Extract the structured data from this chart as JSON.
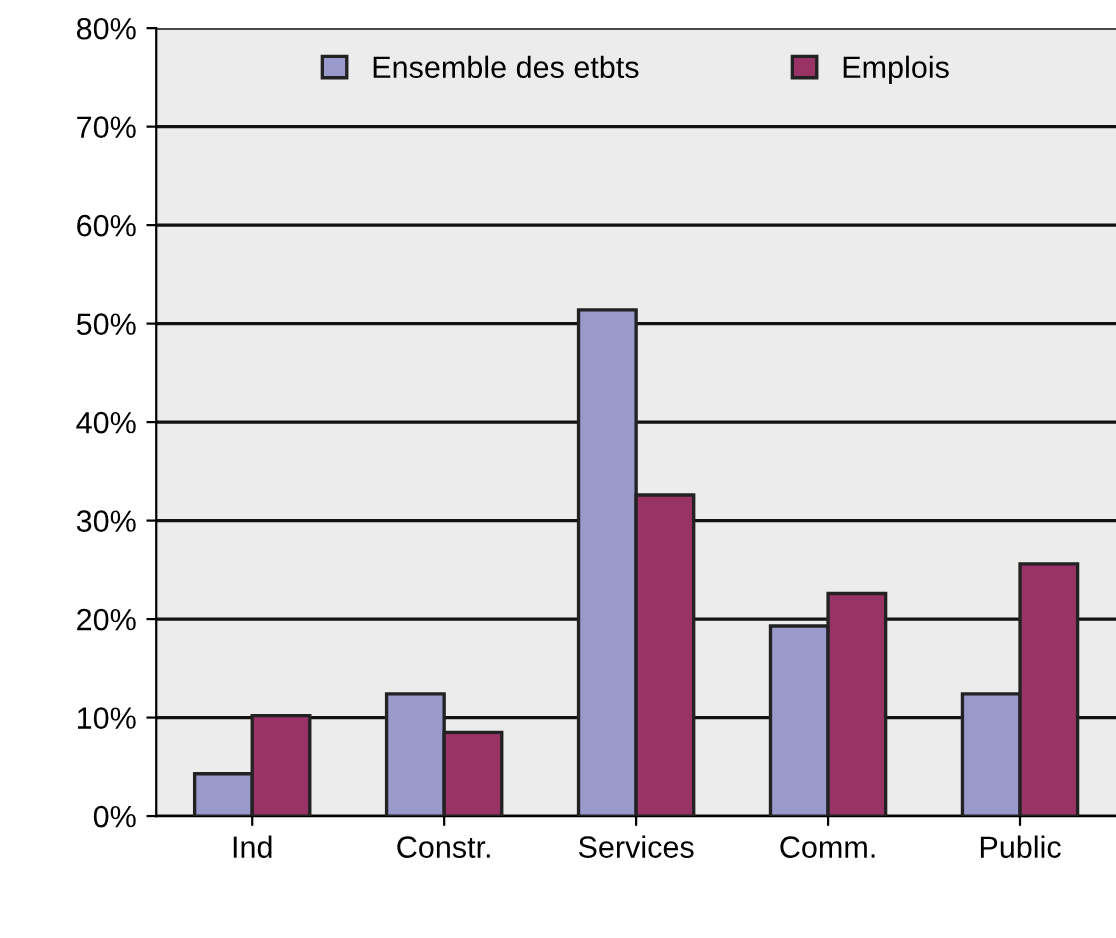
{
  "chart_data": {
    "type": "bar",
    "categories": [
      "Ind",
      "Constr.",
      "Services",
      "Comm.",
      "Public"
    ],
    "series": [
      {
        "name": "Ensemble des etbts",
        "color": "#9999cc",
        "values": [
          4.3,
          12.4,
          51.4,
          19.3,
          12.4
        ]
      },
      {
        "name": "Emplois",
        "color": "#993366",
        "values": [
          10.2,
          8.5,
          32.6,
          22.6,
          25.6
        ]
      }
    ],
    "ylim": [
      0,
      80
    ],
    "yticks": [
      {
        "value": 0,
        "label": "0%"
      },
      {
        "value": 10,
        "label": "10%"
      },
      {
        "value": 20,
        "label": "20%"
      },
      {
        "value": 30,
        "label": "30%"
      },
      {
        "value": 40,
        "label": "40%"
      },
      {
        "value": 50,
        "label": "50%"
      },
      {
        "value": 60,
        "label": "60%"
      },
      {
        "value": 70,
        "label": "70%"
      },
      {
        "value": 80,
        "label": "80%"
      }
    ],
    "grid": "y",
    "legend": "top"
  }
}
